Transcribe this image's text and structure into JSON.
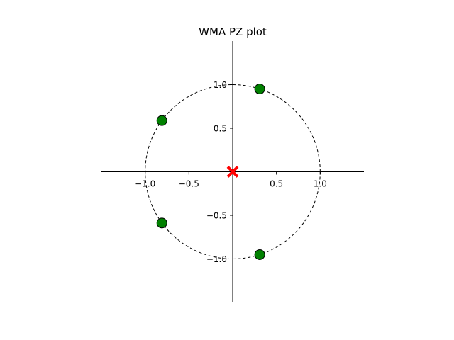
{
  "chart_data": {
    "type": "scatter",
    "title": "WMA PZ plot",
    "xlim": [
      -1.5,
      1.5
    ],
    "ylim": [
      -1.5,
      1.5
    ],
    "x_ticks": [
      {
        "value": -1.0,
        "label": "−1.0"
      },
      {
        "value": -0.5,
        "label": "−0.5"
      },
      {
        "value": 0.5,
        "label": "0.5"
      },
      {
        "value": 1.0,
        "label": "1.0"
      }
    ],
    "y_ticks": [
      {
        "value": 1.0,
        "label": "1.0"
      },
      {
        "value": 0.5,
        "label": "0.5"
      },
      {
        "value": -0.5,
        "label": "−0.5"
      },
      {
        "value": -1.0,
        "label": "−1.0"
      }
    ],
    "unit_circle": {
      "radius": 1.0,
      "style": "dashed",
      "color": "#000000"
    },
    "zeros": {
      "marker": "circle",
      "color": "#008000",
      "edge_color": "#000000",
      "points": [
        {
          "x": 0.309,
          "y": 0.951
        },
        {
          "x": -0.809,
          "y": 0.588
        },
        {
          "x": -0.809,
          "y": -0.588
        },
        {
          "x": 0.309,
          "y": -0.951
        }
      ]
    },
    "poles": {
      "marker": "x",
      "color": "#ff0000",
      "points": [
        {
          "x": 0.0,
          "y": 0.0
        }
      ]
    },
    "grid": false,
    "spines": "centered"
  }
}
